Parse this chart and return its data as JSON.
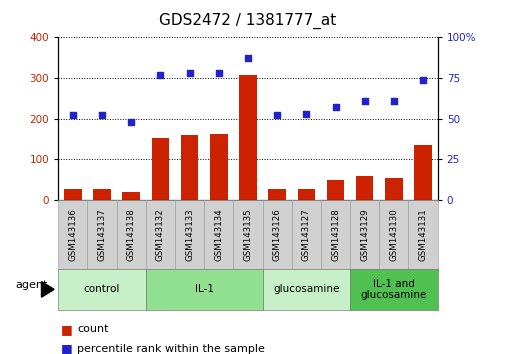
{
  "title": "GDS2472 / 1381777_at",
  "samples": [
    "GSM143136",
    "GSM143137",
    "GSM143138",
    "GSM143132",
    "GSM143133",
    "GSM143134",
    "GSM143135",
    "GSM143126",
    "GSM143127",
    "GSM143128",
    "GSM143129",
    "GSM143130",
    "GSM143131"
  ],
  "counts": [
    28,
    26,
    20,
    152,
    160,
    162,
    308,
    27,
    28,
    48,
    60,
    54,
    135
  ],
  "percentiles": [
    52,
    52,
    48,
    77,
    78,
    78,
    87,
    52,
    53,
    57,
    61,
    61,
    74
  ],
  "groups": [
    {
      "label": "control",
      "start": 0,
      "end": 3,
      "color": "#c8f0c8"
    },
    {
      "label": "IL-1",
      "start": 3,
      "end": 7,
      "color": "#90e090"
    },
    {
      "label": "glucosamine",
      "start": 7,
      "end": 10,
      "color": "#c8f0c8"
    },
    {
      "label": "IL-1 and\nglucosamine",
      "start": 10,
      "end": 13,
      "color": "#50c050"
    }
  ],
  "bar_color": "#cc2200",
  "dot_color": "#2222cc",
  "ylim_left": [
    0,
    400
  ],
  "ylim_right": [
    0,
    100
  ],
  "yticks_left": [
    0,
    100,
    200,
    300,
    400
  ],
  "yticks_right": [
    0,
    25,
    50,
    75,
    100
  ],
  "ytick_right_labels": [
    "0",
    "25",
    "50",
    "75",
    "100%"
  ],
  "grid_color": "#000000",
  "bg_plot": "#ffffff",
  "bg_xlabels": "#d0d0d0",
  "agent_label": "agent",
  "legend_count": "count",
  "legend_pct": "percentile rank within the sample",
  "title_fontsize": 11,
  "tick_fontsize": 7.5,
  "legend_fontsize": 8
}
